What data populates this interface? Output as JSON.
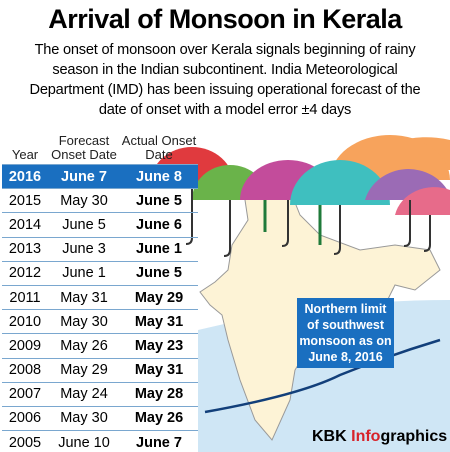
{
  "header": {
    "title": "Arrival of Monsoon in Kerala",
    "description": "The onset of monsoon over Kerala signals beginning of rainy season in the Indian subcontinent. India Meteorological Department (IMD) has been issuing operational forecast of the date of onset with a model error ±4 days"
  },
  "table": {
    "columns": [
      "Year",
      "Forecast Onset Date",
      "Actual Onset Date"
    ],
    "rows": [
      [
        "2016",
        "June 7",
        "June 8"
      ],
      [
        "2015",
        "May 30",
        "June 5"
      ],
      [
        "2014",
        "June 5",
        "June 6"
      ],
      [
        "2013",
        "June 3",
        "June 1"
      ],
      [
        "2012",
        "June 1",
        "June 5"
      ],
      [
        "2011",
        "May 31",
        "May 29"
      ],
      [
        "2010",
        "May 30",
        "May 31"
      ],
      [
        "2009",
        "May 26",
        "May 23"
      ],
      [
        "2008",
        "May 29",
        "May 31"
      ],
      [
        "2007",
        "May 24",
        "May 28"
      ],
      [
        "2006",
        "May 30",
        "May 26"
      ],
      [
        "2005",
        "June 10",
        "June 7"
      ]
    ]
  },
  "map": {
    "annotation": "Northern limit of southwest monsoon as on June 8, 2016"
  },
  "credit": {
    "brand": "KBK",
    "highlight": "Info",
    "suffix": "graphics"
  }
}
